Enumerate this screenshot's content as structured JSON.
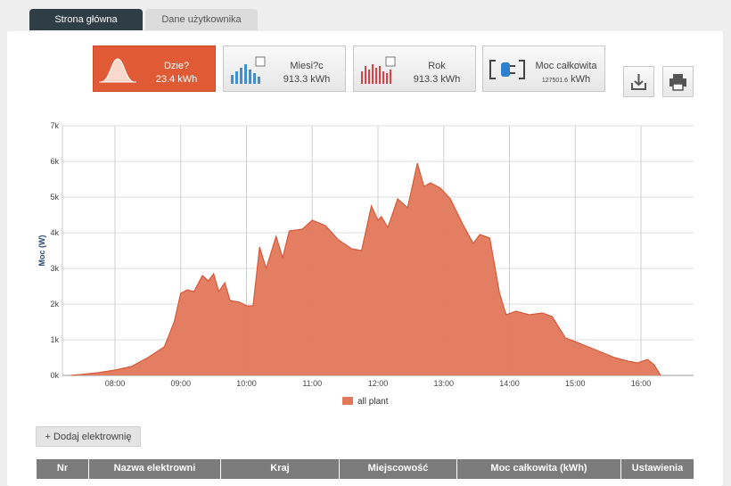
{
  "tabs": [
    "Strona główna",
    "Dane użytkownika"
  ],
  "cards": [
    {
      "label": "Dzie?",
      "value": "23.4 kWh"
    },
    {
      "label": "Miesi?c",
      "value": "913.3 kWh"
    },
    {
      "label": "Rok",
      "value": "913.3 kWh"
    },
    {
      "label": "Moc całkowita",
      "value": "127501.6",
      "unit": "kWh"
    }
  ],
  "chart_data": {
    "type": "area",
    "y_label": "Moc (W)",
    "x": [
      7.33,
      7.5,
      7.75,
      8.0,
      8.25,
      8.5,
      8.75,
      8.9,
      9.0,
      9.1,
      9.2,
      9.33,
      9.42,
      9.5,
      9.58,
      9.67,
      9.75,
      9.9,
      10.0,
      10.1,
      10.2,
      10.3,
      10.45,
      10.55,
      10.65,
      10.85,
      11.0,
      11.2,
      11.4,
      11.6,
      11.75,
      11.9,
      12.0,
      12.05,
      12.15,
      12.3,
      12.45,
      12.6,
      12.7,
      12.8,
      12.95,
      13.1,
      13.3,
      13.45,
      13.55,
      13.7,
      13.85,
      13.95,
      14.1,
      14.3,
      14.5,
      14.65,
      14.85,
      15.0,
      15.2,
      15.4,
      15.6,
      15.8,
      15.95,
      16.1,
      16.2,
      16.3
    ],
    "series": [
      {
        "name": "all plant",
        "color": "#e2775a",
        "values": [
          0,
          30,
          80,
          150,
          250,
          500,
          800,
          1500,
          2300,
          2400,
          2350,
          2800,
          2650,
          2850,
          2350,
          2600,
          2100,
          2050,
          1950,
          1950,
          3600,
          3000,
          3900,
          3300,
          4050,
          4100,
          4350,
          4200,
          3800,
          3550,
          3500,
          4750,
          4350,
          4450,
          4150,
          4950,
          4700,
          5950,
          5300,
          5400,
          5250,
          4950,
          4200,
          3700,
          3950,
          3850,
          2300,
          1700,
          1800,
          1700,
          1750,
          1650,
          1050,
          950,
          800,
          650,
          500,
          400,
          350,
          450,
          300,
          0
        ]
      }
    ],
    "xlim": [
      7.2,
      16.8
    ],
    "xticks": [
      {
        "value": 8,
        "label": "08:00"
      },
      {
        "value": 9,
        "label": "09:00"
      },
      {
        "value": 10,
        "label": "10:00"
      },
      {
        "value": 11,
        "label": "11:00"
      },
      {
        "value": 12,
        "label": "12:00"
      },
      {
        "value": 13,
        "label": "13:00"
      },
      {
        "value": 14,
        "label": "14:00"
      },
      {
        "value": 15,
        "label": "15:00"
      },
      {
        "value": 16,
        "label": "16:00"
      }
    ],
    "ylim": [
      0,
      7000
    ],
    "yticks": [
      {
        "value": 0,
        "label": "0k"
      },
      {
        "value": 1000,
        "label": "1k"
      },
      {
        "value": 2000,
        "label": "2k"
      },
      {
        "value": 3000,
        "label": "3k"
      },
      {
        "value": 4000,
        "label": "4k"
      },
      {
        "value": 5000,
        "label": "5k"
      },
      {
        "value": 6000,
        "label": "6k"
      },
      {
        "value": 7000,
        "label": "7k"
      }
    ],
    "grid": true
  },
  "add_button": "+ Dodaj elektrownię",
  "table": {
    "headers": [
      "Nr",
      "Nazwa elektrowni",
      "Kraj",
      "Miejscowość",
      "Moc całkowita  (kWh)",
      "Ustawienia"
    ]
  }
}
